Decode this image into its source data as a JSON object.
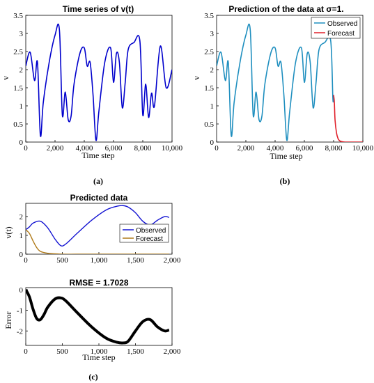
{
  "panel_labels": [
    "(a)",
    "(b)",
    "(c)"
  ],
  "chart_data": [
    {
      "id": "a",
      "type": "line",
      "title": "Time series of v(t)",
      "xlabel": "Time step",
      "ylabel": "v",
      "xlim": [
        0,
        10000
      ],
      "ylim": [
        0,
        3.5
      ],
      "xticks": [
        0,
        2000,
        4000,
        6000,
        8000,
        10000
      ],
      "xtick_labels": [
        "0",
        "2,000",
        "4,000",
        "6,000",
        "8,000",
        "10,000"
      ],
      "yticks": [
        0,
        0.5,
        1,
        1.5,
        2,
        2.5,
        3,
        3.5
      ],
      "ytick_labels": [
        "0",
        "0.5",
        "1",
        "1.5",
        "2",
        "2.5",
        "3",
        "3.5"
      ],
      "series": [
        {
          "color": "#0000cc",
          "x": [
            0,
            300,
            600,
            800,
            1000,
            1200,
            1600,
            2000,
            2300,
            2500,
            2700,
            2900,
            3100,
            3300,
            3700,
            4000,
            4200,
            4400,
            4600,
            4800,
            5000,
            5400,
            5800,
            6000,
            6200,
            6400,
            6600,
            6800,
            7000,
            7400,
            7800,
            8000,
            8200,
            8400,
            8600,
            8800,
            9200,
            9600,
            10000
          ],
          "y": [
            2.1,
            2.48,
            1.7,
            2.2,
            0.18,
            1.1,
            2.2,
            2.95,
            3.1,
            0.75,
            1.38,
            0.62,
            0.72,
            1.6,
            2.45,
            2.6,
            2.1,
            2.2,
            1.3,
            0.05,
            0.85,
            2.2,
            2.6,
            1.65,
            2.45,
            2.2,
            0.95,
            1.65,
            2.55,
            2.75,
            2.8,
            0.75,
            1.6,
            0.68,
            1.35,
            1.0,
            2.65,
            1.5,
            2.0
          ]
        }
      ]
    },
    {
      "id": "b",
      "type": "line",
      "title": "Prediction of the data at σ=1.",
      "xlabel": "Time step",
      "ylabel": "v",
      "xlim": [
        0,
        10000
      ],
      "ylim": [
        0,
        3.5
      ],
      "xticks": [
        0,
        2000,
        4000,
        6000,
        8000,
        10000
      ],
      "xtick_labels": [
        "0",
        "2,000",
        "4,000",
        "6,000",
        "8,000",
        "10,000"
      ],
      "yticks": [
        0,
        0.5,
        1,
        1.5,
        2,
        2.5,
        3,
        3.5
      ],
      "ytick_labels": [
        "0",
        "0.5",
        "1",
        "1.5",
        "2",
        "2.5",
        "3",
        "3.5"
      ],
      "legend": "top-right",
      "series": [
        {
          "name": "Observed",
          "color": "#1f8fbf",
          "x": [
            0,
            300,
            600,
            800,
            1000,
            1200,
            1600,
            2000,
            2300,
            2500,
            2700,
            2900,
            3100,
            3300,
            3700,
            4000,
            4200,
            4400,
            4600,
            4800,
            5000,
            5400,
            5800,
            6000,
            6200,
            6400,
            6600,
            6800,
            7000,
            7400,
            7800,
            7950,
            8000
          ],
          "y": [
            2.1,
            2.48,
            1.7,
            2.2,
            0.18,
            1.1,
            2.2,
            2.95,
            3.1,
            0.75,
            1.38,
            0.62,
            0.72,
            1.6,
            2.45,
            2.6,
            2.1,
            2.2,
            1.3,
            0.05,
            0.85,
            2.2,
            2.6,
            1.65,
            2.45,
            2.2,
            0.95,
            1.65,
            2.55,
            2.75,
            2.8,
            1.2,
            1.3
          ]
        },
        {
          "name": "Forecast",
          "color": "#e0202a",
          "x": [
            8000,
            8050,
            8100,
            8200,
            8300,
            8400,
            8500,
            8600,
            8800,
            9000,
            9500,
            10000
          ],
          "y": [
            1.3,
            1.1,
            0.6,
            0.25,
            0.1,
            0.04,
            0.02,
            0.01,
            0.0,
            0.0,
            0.0,
            0.0
          ]
        }
      ]
    },
    {
      "id": "c-top",
      "type": "line",
      "title": "Predicted data",
      "xlabel": "",
      "ylabel": "v(t)",
      "xlim": [
        0,
        2000
      ],
      "ylim": [
        0,
        2.7
      ],
      "xticks": [
        0,
        500,
        1000,
        1500,
        2000
      ],
      "xtick_labels": [
        "0",
        "500",
        "1,000",
        "1,500",
        "2,000"
      ],
      "yticks": [
        0,
        1,
        2
      ],
      "ytick_labels": [
        "0",
        "1",
        "2"
      ],
      "legend": "right",
      "series": [
        {
          "name": "Observed",
          "color": "#1414d2",
          "x": [
            0,
            50,
            100,
            200,
            300,
            400,
            480,
            550,
            700,
            900,
            1100,
            1250,
            1330,
            1400,
            1500,
            1600,
            1700,
            1800,
            1900,
            1960
          ],
          "y": [
            1.3,
            1.45,
            1.65,
            1.75,
            1.4,
            0.8,
            0.45,
            0.55,
            1.1,
            1.8,
            2.35,
            2.55,
            2.58,
            2.5,
            2.2,
            1.75,
            1.55,
            1.8,
            2.0,
            1.95
          ]
        },
        {
          "name": "Forecast",
          "color": "#b07a18",
          "x": [
            0,
            50,
            100,
            150,
            200,
            300,
            400,
            500,
            700,
            1000,
            1500,
            1960
          ],
          "y": [
            1.3,
            1.1,
            0.7,
            0.35,
            0.15,
            0.05,
            0.02,
            0.0,
            0.0,
            0.0,
            0.0,
            0.0
          ]
        }
      ]
    },
    {
      "id": "c-bottom",
      "type": "line",
      "title": "RMSE = 1.7028",
      "xlabel": "Time step",
      "ylabel": "Error",
      "xlim": [
        0,
        2000
      ],
      "ylim": [
        -2.7,
        0.1
      ],
      "xticks": [
        0,
        500,
        1000,
        1500,
        2000
      ],
      "xtick_labels": [
        "0",
        "500",
        "1,000",
        "1,500",
        "2,000"
      ],
      "yticks": [
        0,
        -1,
        -2
      ],
      "ytick_labels": [
        "0",
        "-1",
        "-2"
      ],
      "series": [
        {
          "color": "#000000",
          "x": [
            0,
            50,
            100,
            150,
            200,
            250,
            300,
            400,
            480,
            550,
            700,
            900,
            1100,
            1250,
            1330,
            1400,
            1500,
            1600,
            1700,
            1800,
            1900,
            1960
          ],
          "y": [
            0.0,
            -0.35,
            -0.95,
            -1.4,
            -1.45,
            -1.2,
            -0.85,
            -0.45,
            -0.4,
            -0.55,
            -1.1,
            -1.8,
            -2.35,
            -2.55,
            -2.58,
            -2.5,
            -2.0,
            -1.55,
            -1.45,
            -1.8,
            -2.0,
            -1.95
          ]
        }
      ]
    }
  ]
}
